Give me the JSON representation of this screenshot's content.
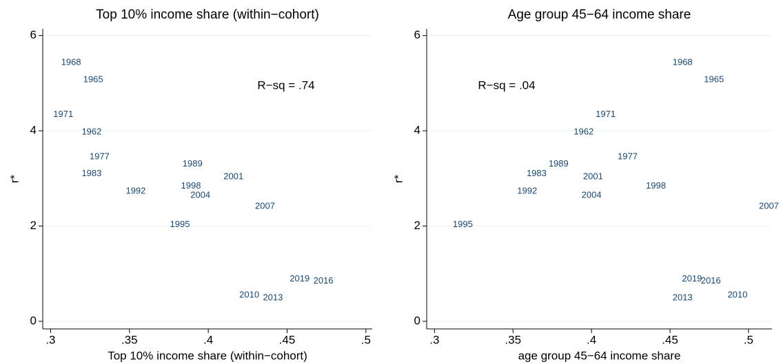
{
  "chart_data": [
    {
      "type": "scatter",
      "title": "Top 10% income share (within−cohort)",
      "x_label": "Top 10% income share (within−cohort)",
      "y_label": "r*",
      "annotation": "R−sq = .74",
      "color": "#1a476f",
      "grid": true,
      "point_labels": [
        "1968",
        "1965",
        "1971",
        "1962",
        "1977",
        "1983",
        "1989",
        "1998",
        "2001",
        "2004",
        "1992",
        "2007",
        "1995",
        "2019",
        "2016",
        "2010",
        "2013"
      ],
      "x": [
        0.313,
        0.327,
        0.308,
        0.326,
        0.331,
        0.326,
        0.39,
        0.389,
        0.416,
        0.395,
        0.354,
        0.436,
        0.382,
        0.458,
        0.473,
        0.426,
        0.441
      ],
      "values": [
        5.43,
        5.07,
        4.34,
        3.97,
        3.45,
        3.1,
        3.3,
        2.84,
        3.03,
        2.64,
        2.73,
        2.41,
        2.03,
        0.89,
        0.84,
        0.55,
        0.49
      ],
      "xlim": [
        0.295,
        0.504
      ],
      "ylim": [
        -0.16,
        6.14
      ],
      "xticks": [
        {
          "value": 0.3,
          "label": ".3"
        },
        {
          "value": 0.35,
          "label": ".35"
        },
        {
          "value": 0.4,
          "label": ".4"
        },
        {
          "value": 0.45,
          "label": ".45"
        },
        {
          "value": 0.5,
          "label": ".5"
        }
      ],
      "yticks": [
        0,
        2,
        4,
        6
      ]
    },
    {
      "type": "scatter",
      "title": "Age group 45−64 income share",
      "x_label": "age group 45−64 income share",
      "y_label": "r*",
      "annotation": "R−sq = .04",
      "color": "#1a476f",
      "grid": true,
      "point_labels": [
        "1968",
        "1965",
        "1971",
        "1962",
        "1977",
        "1983",
        "1989",
        "2001",
        "2004",
        "1992",
        "1998",
        "2007",
        "1995",
        "2019",
        "2016",
        "2013",
        "2010"
      ],
      "x": [
        0.458,
        0.478,
        0.409,
        0.395,
        0.423,
        0.365,
        0.379,
        0.401,
        0.4,
        0.359,
        0.441,
        0.513,
        0.318,
        0.464,
        0.476,
        0.458,
        0.493
      ],
      "values": [
        5.43,
        5.07,
        4.34,
        3.97,
        3.45,
        3.1,
        3.3,
        3.03,
        2.64,
        2.73,
        2.84,
        2.41,
        2.03,
        0.89,
        0.84,
        0.49,
        0.55
      ],
      "xlim": [
        0.295,
        0.515
      ],
      "ylim": [
        -0.16,
        6.14
      ],
      "xticks": [
        {
          "value": 0.3,
          "label": ".3"
        },
        {
          "value": 0.35,
          "label": ".35"
        },
        {
          "value": 0.4,
          "label": ".4"
        },
        {
          "value": 0.45,
          "label": ".45"
        },
        {
          "value": 0.5,
          "label": ".5"
        }
      ],
      "yticks": [
        0,
        2,
        4,
        6
      ]
    }
  ]
}
